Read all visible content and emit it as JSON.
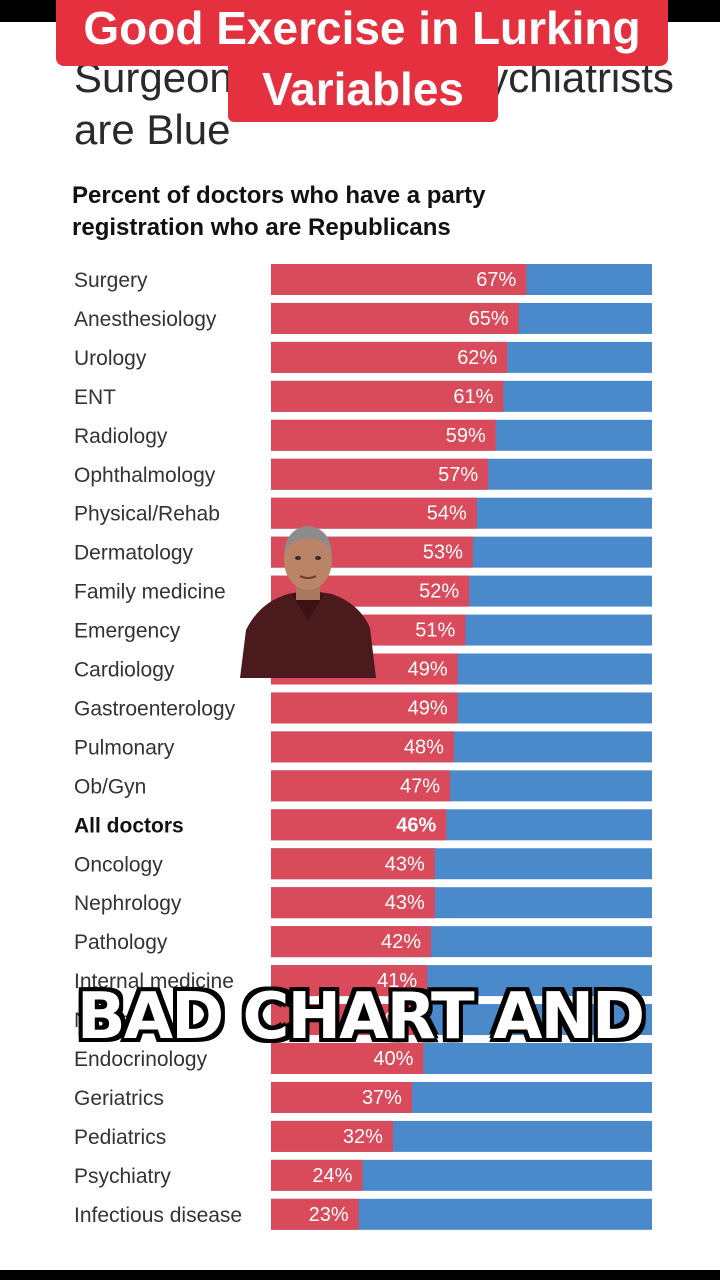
{
  "article_title": "Surgeons are Red, Psychiatrists are Blue",
  "overlay": {
    "caption_line1": "Good Exercise in Lurking",
    "caption_line2": "Variables",
    "subtitle_caption": "BAD CHART AND"
  },
  "colors": {
    "republican": "#d94a5a",
    "democrat": "#4a8acb",
    "caption_bg": "#e5303f"
  },
  "chart_data": {
    "type": "bar",
    "title": "Percent of doctors who have a party registration who are Republicans",
    "orientation": "horizontal-stacked-100",
    "categories": [
      "Surgery",
      "Anesthesiology",
      "Urology",
      "ENT",
      "Radiology",
      "Ophthalmology",
      "Physical/Rehab",
      "Dermatology",
      "Family medicine",
      "Emergency",
      "Cardiology",
      "Gastroenterology",
      "Pulmonary",
      "Ob/Gyn",
      "All doctors",
      "Oncology",
      "Nephrology",
      "Pathology",
      "Internal medicine",
      "Neurology",
      "Endocrinology",
      "Geriatrics",
      "Pediatrics",
      "Psychiatry",
      "Infectious disease"
    ],
    "values": [
      67,
      65,
      62,
      61,
      59,
      57,
      54,
      53,
      52,
      51,
      49,
      49,
      48,
      47,
      46,
      43,
      43,
      42,
      41,
      40,
      40,
      37,
      32,
      24,
      23
    ],
    "value_labels": [
      "67%",
      "65%",
      "62%",
      "61%",
      "59%",
      "57%",
      "54%",
      "53%",
      "52%",
      "51%",
      "49%",
      "49%",
      "48%",
      "47%",
      "46%",
      "43%",
      "43%",
      "42%",
      "41%",
      "40%",
      "40%",
      "37%",
      "32%",
      "24%",
      "23%"
    ],
    "highlight_index": 14,
    "xlim": [
      0,
      100
    ]
  }
}
